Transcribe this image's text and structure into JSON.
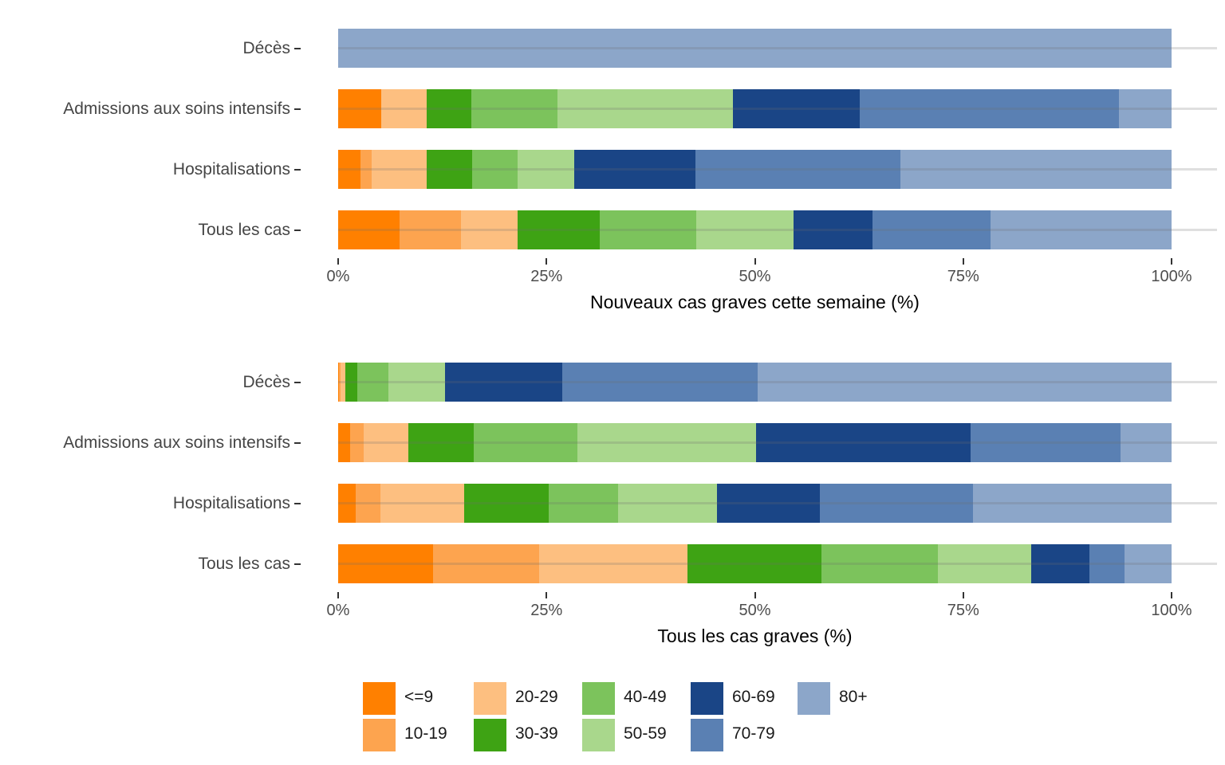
{
  "figure": {
    "background": "#ffffff",
    "text_gray": "#4d4d4d",
    "axis_title_color": "#000000"
  },
  "age_groups": [
    "<=9",
    "10-19",
    "20-29",
    "30-39",
    "40-49",
    "50-59",
    "60-69",
    "70-79",
    "80+"
  ],
  "age_colors": [
    "#FF8000",
    "#FDA44F",
    "#FDBF80",
    "#3EA314",
    "#7CC35C",
    "#A9D78C",
    "#1A4586",
    "#5A80B3",
    "#8CA6C9"
  ],
  "legend": {
    "rows": [
      [
        "<=9",
        "20-29",
        "40-49",
        "60-69",
        "80+"
      ],
      [
        "10-19",
        "30-39",
        "50-59",
        "70-79"
      ]
    ]
  },
  "chart_data": [
    {
      "type": "bar",
      "orientation": "horizontal",
      "stacked": true,
      "title": "",
      "xlabel": "Nouveaux cas graves cette semaine (%)",
      "ylabel": "",
      "xlim": [
        0,
        100
      ],
      "x_ticks": [
        "0%",
        "25%",
        "50%",
        "75%",
        "100%"
      ],
      "x_tick_values": [
        0,
        25,
        50,
        75,
        100
      ],
      "grid": "horizontal-only",
      "legend_position": "bottom-shared",
      "categories": [
        "Décès",
        "Admissions aux soins intensifs",
        "Hospitalisations",
        "Tous les cas"
      ],
      "series": [
        {
          "name": "<=9",
          "values": [
            0,
            5.2,
            2.7,
            7.4
          ]
        },
        {
          "name": "10-19",
          "values": [
            0,
            0.0,
            1.3,
            7.3
          ]
        },
        {
          "name": "20-29",
          "values": [
            0,
            5.4,
            6.6,
            6.8
          ]
        },
        {
          "name": "30-39",
          "values": [
            0,
            5.4,
            5.5,
            9.9
          ]
        },
        {
          "name": "40-49",
          "values": [
            0,
            10.3,
            5.4,
            11.6
          ]
        },
        {
          "name": "50-59",
          "values": [
            0,
            21.1,
            6.8,
            11.6
          ]
        },
        {
          "name": "60-69",
          "values": [
            0,
            15.2,
            14.6,
            9.5
          ]
        },
        {
          "name": "70-79",
          "values": [
            0,
            31.1,
            24.6,
            14.2
          ]
        },
        {
          "name": "80+",
          "values": [
            100,
            6.3,
            32.5,
            21.7
          ]
        }
      ]
    },
    {
      "type": "bar",
      "orientation": "horizontal",
      "stacked": true,
      "title": "",
      "xlabel": "Tous les cas graves (%)",
      "ylabel": "",
      "xlim": [
        0,
        100
      ],
      "x_ticks": [
        "0%",
        "25%",
        "50%",
        "75%",
        "100%"
      ],
      "x_tick_values": [
        0,
        25,
        50,
        75,
        100
      ],
      "grid": "horizontal-only",
      "legend_position": "bottom-shared",
      "categories": [
        "Décès",
        "Admissions aux soins intensifs",
        "Hospitalisations",
        "Tous les cas"
      ],
      "series": [
        {
          "name": "<=9",
          "values": [
            0.1,
            1.4,
            2.1,
            11.4
          ]
        },
        {
          "name": "10-19",
          "values": [
            0.2,
            1.7,
            3.0,
            12.7
          ]
        },
        {
          "name": "20-29",
          "values": [
            0.6,
            5.3,
            10.0,
            17.8
          ]
        },
        {
          "name": "30-39",
          "values": [
            1.4,
            7.9,
            10.2,
            16.1
          ]
        },
        {
          "name": "40-49",
          "values": [
            3.7,
            12.4,
            8.3,
            14.0
          ]
        },
        {
          "name": "50-59",
          "values": [
            6.8,
            21.4,
            11.9,
            11.2
          ]
        },
        {
          "name": "60-69",
          "values": [
            14.1,
            25.8,
            12.3,
            6.9
          ]
        },
        {
          "name": "70-79",
          "values": [
            23.4,
            18.0,
            18.4,
            4.3
          ]
        },
        {
          "name": "80+",
          "values": [
            49.7,
            6.1,
            23.8,
            5.6
          ]
        }
      ]
    }
  ]
}
